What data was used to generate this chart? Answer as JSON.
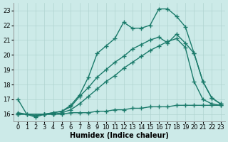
{
  "bg_color": "#cceae8",
  "grid_color": "#b0d4d0",
  "line_color": "#1a7a6a",
  "line_width": 1.0,
  "marker": "+",
  "marker_size": 4,
  "xlabel": "Humidex (Indice chaleur)",
  "xlabel_fontsize": 7,
  "tick_fontsize": 6,
  "xlim": [
    -0.5,
    23.5
  ],
  "ylim": [
    15.5,
    23.5
  ],
  "yticks": [
    16,
    17,
    18,
    19,
    20,
    21,
    22,
    23
  ],
  "xticks": [
    0,
    1,
    2,
    3,
    4,
    5,
    6,
    7,
    8,
    9,
    10,
    11,
    12,
    13,
    14,
    15,
    16,
    17,
    18,
    19,
    20,
    21,
    22,
    23
  ],
  "line1_x": [
    0,
    1,
    2,
    3,
    4,
    5,
    6,
    7,
    8,
    9,
    10,
    11,
    12,
    13,
    14,
    15,
    16,
    17,
    18,
    19,
    20,
    21,
    22,
    23
  ],
  "line1_y": [
    17.0,
    16.0,
    15.8,
    16.0,
    16.1,
    16.2,
    16.6,
    17.3,
    18.5,
    20.1,
    20.6,
    21.1,
    22.2,
    21.8,
    21.8,
    22.0,
    23.1,
    23.1,
    22.6,
    21.9,
    20.1,
    18.2,
    17.1,
    16.7
  ],
  "line2_x": [
    0,
    3,
    4,
    5,
    6,
    7,
    8,
    9,
    10,
    11,
    12,
    13,
    14,
    15,
    16,
    17,
    18,
    19,
    20,
    21,
    22,
    23
  ],
  "line2_y": [
    16.0,
    16.0,
    16.1,
    16.2,
    16.5,
    17.2,
    17.8,
    18.5,
    19.0,
    19.5,
    19.9,
    20.4,
    20.7,
    21.0,
    21.2,
    20.8,
    21.4,
    20.8,
    20.1,
    18.2,
    17.1,
    16.7
  ],
  "line3_x": [
    0,
    3,
    4,
    5,
    6,
    7,
    8,
    9,
    10,
    11,
    12,
    13,
    14,
    15,
    16,
    17,
    18,
    19,
    20,
    21,
    22,
    23
  ],
  "line3_y": [
    16.0,
    16.0,
    16.0,
    16.1,
    16.3,
    16.7,
    17.2,
    17.7,
    18.2,
    18.6,
    19.1,
    19.5,
    19.9,
    20.3,
    20.6,
    20.9,
    21.1,
    20.5,
    18.2,
    17.0,
    16.7,
    16.6
  ],
  "line4_x": [
    0,
    1,
    2,
    3,
    4,
    5,
    6,
    7,
    8,
    9,
    10,
    11,
    12,
    13,
    14,
    15,
    16,
    17,
    18,
    19,
    20,
    21,
    22,
    23
  ],
  "line4_y": [
    16.1,
    16.0,
    15.9,
    16.0,
    16.0,
    16.0,
    16.1,
    16.1,
    16.1,
    16.2,
    16.2,
    16.3,
    16.3,
    16.4,
    16.4,
    16.5,
    16.5,
    16.5,
    16.6,
    16.6,
    16.6,
    16.6,
    16.6,
    16.6
  ]
}
